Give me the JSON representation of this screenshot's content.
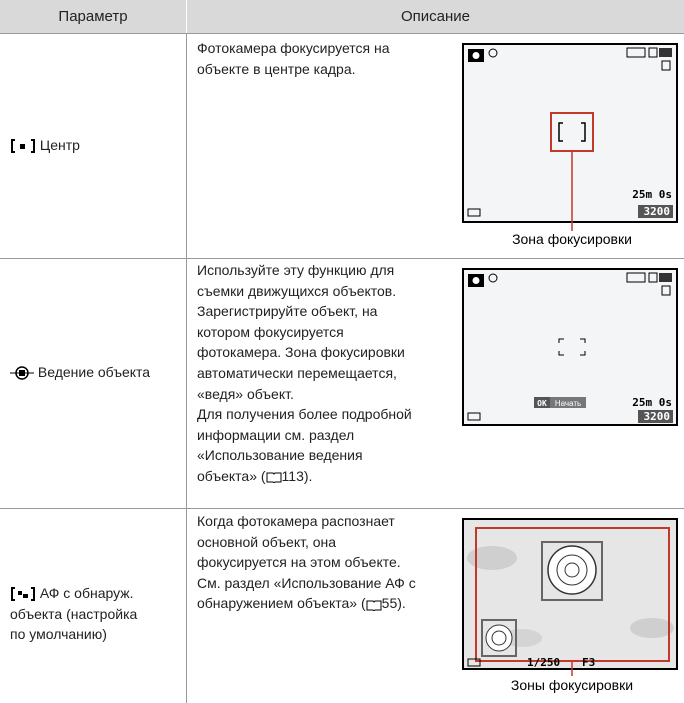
{
  "header": {
    "param": "Параметр",
    "description": "Описание"
  },
  "rows": [
    {
      "param": [
        "Центр"
      ],
      "description": [
        "Фотокамера фокусируется на",
        "объекте в центре кадра."
      ],
      "screen": {
        "time": "25m 0s",
        "count": "3200"
      },
      "callout": "Зона фокусировки"
    },
    {
      "param": [
        "Ведение объекта"
      ],
      "description": [
        "Используйте эту функцию для",
        "съемки движущихся объектов.",
        "Зарегистрируйте объект, на",
        "котором фокусируется",
        "фотокамера. Зона фокусировки",
        "автоматически перемещается,",
        "«ведя» объект.",
        "Для получения более подробной",
        "информации см. раздел",
        "«Использование ведения"
      ],
      "reference": {
        "before": "объекта» (",
        "page": "113",
        "after": ")."
      },
      "screen": {
        "time": "25m 0s",
        "count": "3200",
        "ok": "OK",
        "start": "Начать"
      }
    },
    {
      "param": [
        "АФ с обнаруж.",
        "объекта (настройка",
        "по умолчанию)"
      ],
      "description": [
        "Когда фотокамера распознает",
        "основной объект, она",
        "фокусируется на этом объекте.",
        "См. раздел «Использование АФ с"
      ],
      "reference": {
        "before": "обнаружением объекта» (",
        "page": "55",
        "after": ")."
      },
      "screen": {
        "shutter": "1/250",
        "aperture": "F3"
      },
      "callout": "Зоны фокусировки"
    }
  ]
}
